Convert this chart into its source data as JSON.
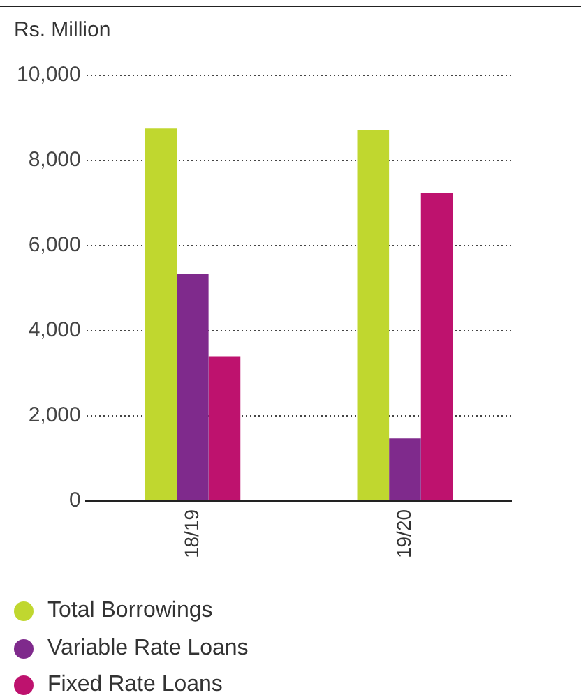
{
  "chart_data": {
    "type": "bar",
    "ylabel": "Rs. Million",
    "categories": [
      "18/19",
      "19/20"
    ],
    "series": [
      {
        "name": "Total Borrowings",
        "color": "#c0d72f",
        "values": [
          8750,
          8710
        ]
      },
      {
        "name": "Variable Rate Loans",
        "color": "#7f2a8c",
        "values": [
          5340,
          1470
        ]
      },
      {
        "name": "Fixed Rate Loans",
        "color": "#be126e",
        "values": [
          3400,
          7240
        ]
      }
    ],
    "ylim": [
      0,
      10000
    ],
    "yticks": [
      {
        "value": 0,
        "label": "0"
      },
      {
        "value": 2000,
        "label": "2,000"
      },
      {
        "value": 4000,
        "label": "4,000"
      },
      {
        "value": 6000,
        "label": "6,000"
      },
      {
        "value": 8000,
        "label": "8,000"
      },
      {
        "value": 10000,
        "label": "10,000"
      }
    ],
    "grid": "y",
    "legend": "bottom"
  }
}
